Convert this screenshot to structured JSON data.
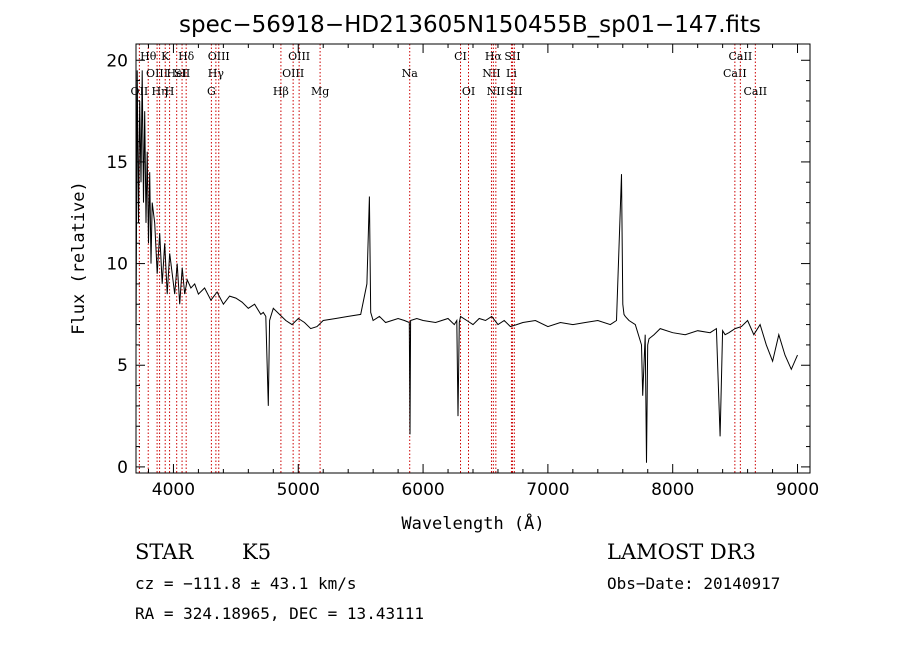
{
  "chart_data": {
    "type": "line",
    "title": "spec−56918−HD213605N150455B_sp01−147.fits",
    "xlabel": "Wavelength (Å)",
    "ylabel": "Flux (relative)",
    "xlim": [
      3700,
      9100
    ],
    "ylim": [
      -0.3,
      20.8
    ],
    "x_ticks": [
      4000,
      5000,
      6000,
      7000,
      8000,
      9000
    ],
    "y_ticks": [
      0,
      5,
      10,
      15,
      20
    ],
    "grid": false,
    "series": [
      {
        "name": "spectrum",
        "x": [
          3700,
          3710,
          3720,
          3730,
          3740,
          3750,
          3760,
          3770,
          3780,
          3790,
          3800,
          3810,
          3820,
          3830,
          3850,
          3870,
          3890,
          3910,
          3930,
          3950,
          3970,
          3990,
          4010,
          4030,
          4050,
          4070,
          4090,
          4110,
          4140,
          4170,
          4200,
          4250,
          4300,
          4350,
          4400,
          4450,
          4500,
          4550,
          4600,
          4650,
          4700,
          4720,
          4740,
          4760,
          4770,
          4780,
          4800,
          4850,
          4900,
          4950,
          5000,
          5050,
          5100,
          5150,
          5200,
          5300,
          5400,
          5500,
          5550,
          5570,
          5580,
          5600,
          5650,
          5700,
          5800,
          5850,
          5890,
          5895,
          5900,
          5950,
          6000,
          6100,
          6200,
          6250,
          6270,
          6280,
          6290,
          6300,
          6350,
          6400,
          6450,
          6500,
          6550,
          6600,
          6650,
          6700,
          6750,
          6800,
          6900,
          7000,
          7100,
          7200,
          7300,
          7400,
          7500,
          7550,
          7590,
          7600,
          7610,
          7620,
          7650,
          7700,
          7750,
          7760,
          7780,
          7790,
          7800,
          7810,
          7850,
          7900,
          8000,
          8100,
          8200,
          8300,
          8350,
          8380,
          8400,
          8420,
          8450,
          8500,
          8550,
          8600,
          8650,
          8700,
          8750,
          8800,
          8850,
          8900,
          8950,
          9000
        ],
        "y": [
          6.0,
          19.5,
          12.0,
          18.0,
          14.0,
          19.5,
          13.0,
          17.5,
          12.0,
          15.5,
          11.0,
          14.5,
          10.0,
          13.0,
          12.0,
          9.5,
          11.5,
          9.0,
          11.0,
          8.5,
          10.5,
          9.5,
          8.5,
          10.0,
          8.0,
          9.8,
          8.5,
          9.2,
          8.8,
          9.0,
          8.5,
          8.8,
          8.2,
          8.6,
          8.0,
          8.4,
          8.3,
          8.1,
          7.8,
          8.0,
          7.5,
          7.6,
          7.4,
          3.0,
          7.2,
          7.4,
          7.8,
          7.5,
          7.2,
          7.0,
          7.3,
          7.1,
          6.8,
          6.9,
          7.2,
          7.3,
          7.4,
          7.5,
          9.0,
          13.3,
          7.6,
          7.2,
          7.4,
          7.1,
          7.3,
          7.2,
          7.1,
          1.6,
          7.2,
          7.3,
          7.2,
          7.1,
          7.3,
          7.0,
          7.2,
          2.5,
          7.1,
          7.4,
          7.2,
          7.0,
          7.3,
          7.2,
          7.4,
          7.0,
          7.2,
          6.9,
          7.0,
          7.1,
          7.2,
          6.9,
          7.1,
          7.0,
          7.1,
          7.2,
          7.0,
          7.2,
          14.4,
          8.0,
          7.5,
          7.4,
          7.2,
          7.0,
          6.0,
          3.5,
          6.5,
          0.2,
          6.0,
          6.3,
          6.5,
          6.8,
          6.6,
          6.5,
          6.7,
          6.6,
          6.8,
          1.5,
          6.7,
          6.5,
          6.6,
          6.8,
          6.9,
          7.2,
          6.5,
          7.0,
          6.0,
          5.2,
          6.5,
          5.5,
          4.8,
          5.5
        ]
      }
    ],
    "reference_lines": [
      {
        "name": "O II",
        "wavelength": 3727,
        "label": "OII",
        "row": 3
      },
      {
        "name": "H theta",
        "wavelength": 3798,
        "label": "Hθ",
        "row": 1
      },
      {
        "name": "O III",
        "wavelength": 3869,
        "label": "OIII",
        "row": 2
      },
      {
        "name": "H eta",
        "wavelength": 3889,
        "label": "Hη",
        "row": 3
      },
      {
        "name": "K",
        "wavelength": 3934,
        "label": "K",
        "row": 1
      },
      {
        "name": "H",
        "wavelength": 3969,
        "label": "H",
        "row": 3
      },
      {
        "name": "He I",
        "wavelength": 4026,
        "label": "HeI",
        "row": 2
      },
      {
        "name": "S II",
        "wavelength": 4069,
        "label": "SII",
        "row": 2
      },
      {
        "name": "H delta",
        "wavelength": 4102,
        "label": "Hδ",
        "row": 1
      },
      {
        "name": "G",
        "wavelength": 4304,
        "label": "G",
        "row": 3
      },
      {
        "name": "H gamma",
        "wavelength": 4340,
        "label": "Hγ",
        "row": 2
      },
      {
        "name": "O III 4363",
        "wavelength": 4363,
        "label": "OIII",
        "row": 1
      },
      {
        "name": "H beta",
        "wavelength": 4861,
        "label": "Hβ",
        "row": 3
      },
      {
        "name": "O III 4959",
        "wavelength": 4959,
        "label": "OIII",
        "row": 2
      },
      {
        "name": "O III 5007",
        "wavelength": 5007,
        "label": "OIII",
        "row": 1
      },
      {
        "name": "Mg",
        "wavelength": 5175,
        "label": "Mg",
        "row": 3
      },
      {
        "name": "Na",
        "wavelength": 5893,
        "label": "Na",
        "row": 2
      },
      {
        "name": "C I",
        "wavelength": 6300,
        "label": "CI",
        "row": 1
      },
      {
        "name": "O I",
        "wavelength": 6364,
        "label": "OI",
        "row": 3
      },
      {
        "name": "N II 6548",
        "wavelength": 6548,
        "label": "NII",
        "row": 2
      },
      {
        "name": "H alpha",
        "wavelength": 6563,
        "label": "Hα",
        "row": 1
      },
      {
        "name": "N II 6583",
        "wavelength": 6583,
        "label": "NII",
        "row": 3
      },
      {
        "name": "Li",
        "wavelength": 6708,
        "label": "Li",
        "row": 2
      },
      {
        "name": "S II 6716",
        "wavelength": 6716,
        "label": "SII",
        "row": 1
      },
      {
        "name": "S II 6731",
        "wavelength": 6731,
        "label": "SII",
        "row": 3
      },
      {
        "name": "Ca II 8498",
        "wavelength": 8498,
        "label": "CaII",
        "row": 2
      },
      {
        "name": "Ca II 8542",
        "wavelength": 8542,
        "label": "CaII",
        "row": 1
      },
      {
        "name": "Ca II 8662",
        "wavelength": 8662,
        "label": "CaII",
        "row": 3
      }
    ],
    "colors": {
      "spectrum": "#000000",
      "reference": "#cc0000",
      "axes": "#000000"
    }
  },
  "info": {
    "class": "STAR",
    "subclass": "K5",
    "survey": "LAMOST DR3",
    "cz": "cz = −111.8 ± 43.1 km/s",
    "obs_date": "Obs−Date: 20140917",
    "coords": "RA = 324.18965, DEC =  13.43111"
  }
}
